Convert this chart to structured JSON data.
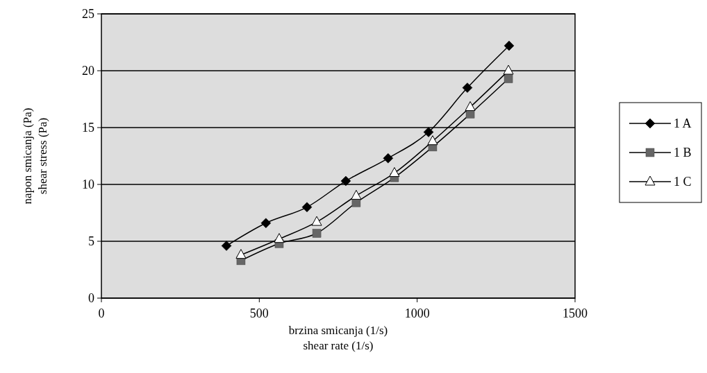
{
  "chart_data": {
    "type": "line",
    "xlabel": "brzina smicanja (1/s)\nshear rate (1/s)",
    "ylabel": "napon smicanja (Pa)\nshear stress (Pa)",
    "xlim": [
      0,
      1500
    ],
    "xticks": [
      0,
      500,
      1000,
      1500
    ],
    "ylim": [
      0,
      25
    ],
    "yticks": [
      0,
      5,
      10,
      15,
      20,
      25
    ],
    "grid": "y",
    "legend": "right",
    "series": [
      {
        "name": "1 A",
        "color": "#000000",
        "marker": "diamond",
        "x": [
          396,
          521,
          651,
          774,
          908,
          1036,
          1159,
          1291
        ],
        "values": [
          4.6,
          6.6,
          8.0,
          10.3,
          12.3,
          14.6,
          18.5,
          22.2
        ]
      },
      {
        "name": "1 B",
        "color": "#666666",
        "marker": "square",
        "x": [
          442,
          563,
          682,
          807,
          928,
          1049,
          1168,
          1289
        ],
        "values": [
          3.3,
          4.8,
          5.7,
          8.4,
          10.6,
          13.3,
          16.2,
          19.3
        ]
      },
      {
        "name": "1 C",
        "color": "#ffffff",
        "marker": "triangle",
        "x": [
          442,
          563,
          682,
          807,
          928,
          1049,
          1168,
          1289
        ],
        "values": [
          3.8,
          5.2,
          6.7,
          9.0,
          11.0,
          13.8,
          16.8,
          20.0
        ]
      }
    ]
  }
}
